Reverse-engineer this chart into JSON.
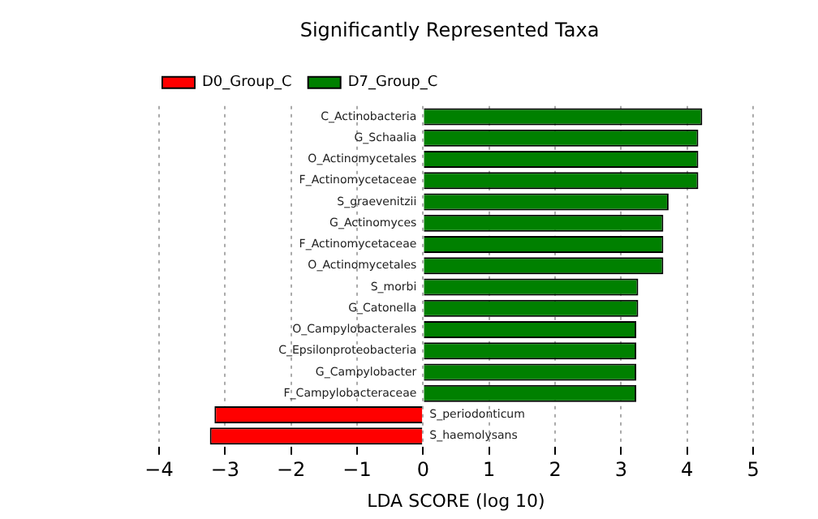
{
  "chart_data": {
    "type": "bar",
    "orientation": "horizontal",
    "title": "Significantly Represented Taxa",
    "xlabel": "LDA SCORE (log 10)",
    "categories": [
      "C_Actinobacteria",
      "G_Schaalia",
      "O_Actinomycetales",
      "F_Actinomycetaceae",
      "S_graevenitzii",
      "G_Actinomyces",
      "F_Actinomycetaceae",
      "O_Actinomycetales",
      "S_morbi",
      "G_Catonella",
      "O_Campylobacterales",
      "C_Epsilonproteobacteria",
      "G_Campylobacter",
      "F_Campylobacteraceae",
      "S_periodonticum",
      "S_haemolysans"
    ],
    "series": [
      {
        "name": "D0_Group_C",
        "color": "#ff0000",
        "values": [
          null,
          null,
          null,
          null,
          null,
          null,
          null,
          null,
          null,
          null,
          null,
          null,
          null,
          null,
          -3.16,
          -3.23
        ]
      },
      {
        "name": "D7_Group_C",
        "color": "#008000",
        "values": [
          4.23,
          4.17,
          4.17,
          4.17,
          3.72,
          3.64,
          3.64,
          3.64,
          3.26,
          3.26,
          3.23,
          3.23,
          3.23,
          3.23,
          null,
          null
        ]
      }
    ],
    "xlim": [
      -4,
      5
    ],
    "xticks": [
      {
        "value": -4,
        "label": "−4"
      },
      {
        "value": -3,
        "label": "−3"
      },
      {
        "value": -2,
        "label": "−2"
      },
      {
        "value": -1,
        "label": "−1"
      },
      0,
      1,
      2,
      3,
      4,
      5
    ],
    "grid": "x",
    "legend": "top left"
  }
}
